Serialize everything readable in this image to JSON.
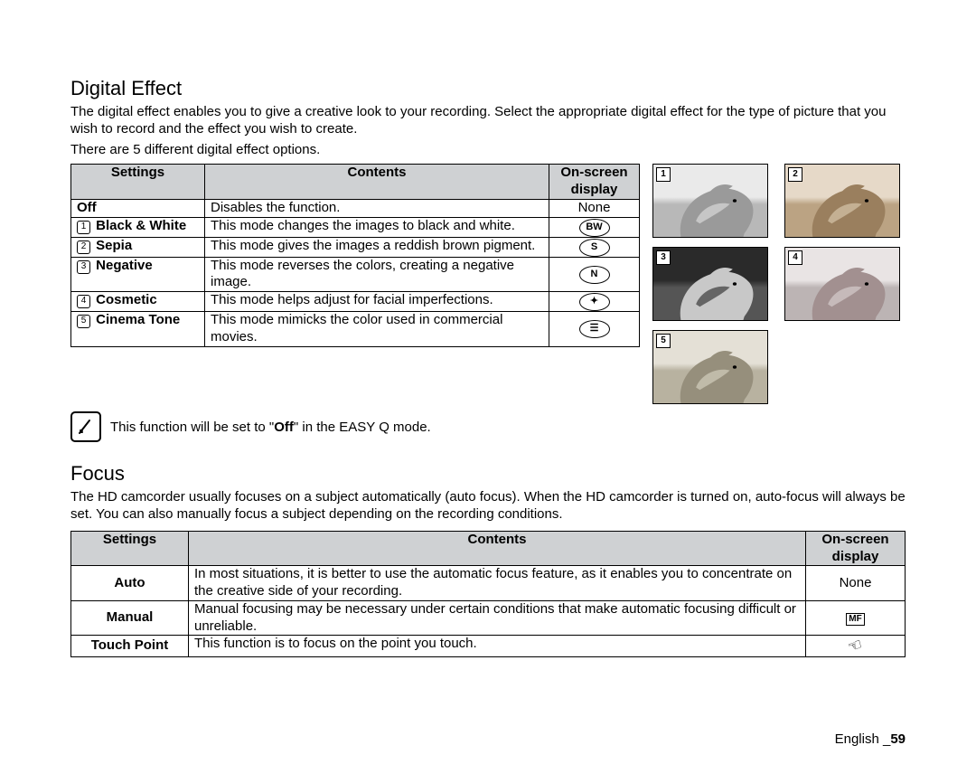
{
  "digitalEffect": {
    "title": "Digital Effect",
    "intro": "The digital effect enables you to give a creative look to your recording. Select the appropriate digital effect for the type of picture that you wish to record and the effect you wish to create.",
    "subline": "There are 5 different digital effect options.",
    "headers": {
      "settings": "Settings",
      "contents": "Contents",
      "display": "On-screen display"
    },
    "rows": [
      {
        "num": "",
        "setting": "Off",
        "contents": "Disables the function.",
        "display_text": "None",
        "icon": ""
      },
      {
        "num": "1",
        "setting": "Black & White",
        "contents": "This mode changes the images to black and white.",
        "display_text": "",
        "icon": "BW"
      },
      {
        "num": "2",
        "setting": "Sepia",
        "contents": "This mode gives the images a reddish brown pigment.",
        "display_text": "",
        "icon": "S"
      },
      {
        "num": "3",
        "setting": "Negative",
        "contents": "This mode reverses the colors, creating a negative image.",
        "display_text": "",
        "icon": "N"
      },
      {
        "num": "4",
        "setting": "Cosmetic",
        "contents": "This mode helps adjust for facial imperfections.",
        "display_text": "",
        "icon": "✦"
      },
      {
        "num": "5",
        "setting": "Cinema Tone",
        "contents": "This mode mimicks the color used in commercial movies.",
        "display_text": "",
        "icon": "☰"
      }
    ],
    "note_pre": "This function will be set to \"",
    "note_bold": "Off",
    "note_post": "\" in the EASY Q mode.",
    "thumbs": {
      "badges": [
        "1",
        "2",
        "3",
        "4",
        "5"
      ],
      "styles": [
        {
          "bg_top": "#eaeaea",
          "bg_bot": "#b8b8b8",
          "body": "#9a9a9a",
          "hi": "#d8d8d8"
        },
        {
          "bg_top": "#e6d9c8",
          "bg_bot": "#bba383",
          "body": "#9a7f5e",
          "hi": "#d6c4aa"
        },
        {
          "bg_top": "#2a2a2a",
          "bg_bot": "#555555",
          "body": "#c8c8c8",
          "hi": "#3a3a3a"
        },
        {
          "bg_top": "#e9e4e4",
          "bg_bot": "#bcb4b4",
          "body": "#a29090",
          "hi": "#d6cccc"
        },
        {
          "bg_top": "#e4e0d6",
          "bg_bot": "#b8b2a0",
          "body": "#968f7c",
          "hi": "#d2cdbc"
        }
      ]
    }
  },
  "focus": {
    "title": "Focus",
    "intro": "The HD camcorder usually focuses on a subject automatically (auto focus). When the HD camcorder is turned on, auto-focus will always be set. You can also manually focus a subject depending on the recording conditions.",
    "headers": {
      "settings": "Settings",
      "contents": "Contents",
      "display": "On-screen display"
    },
    "rows": [
      {
        "setting": "Auto",
        "contents": "In most situations, it is better to use the automatic focus feature, as it enables you to concentrate on the creative side of your recording.",
        "display_text": "None",
        "icon_type": "none"
      },
      {
        "setting": "Manual",
        "contents": "Manual focusing may be necessary under certain conditions that make automatic focusing difficult or unreliable.",
        "display_text": "",
        "icon_type": "mf"
      },
      {
        "setting": "Touch Point",
        "contents": "This function is to focus on the point you touch.",
        "display_text": "",
        "icon_type": "hand"
      }
    ]
  },
  "footer": {
    "lang": "English",
    "sep": "_",
    "page": "59"
  }
}
